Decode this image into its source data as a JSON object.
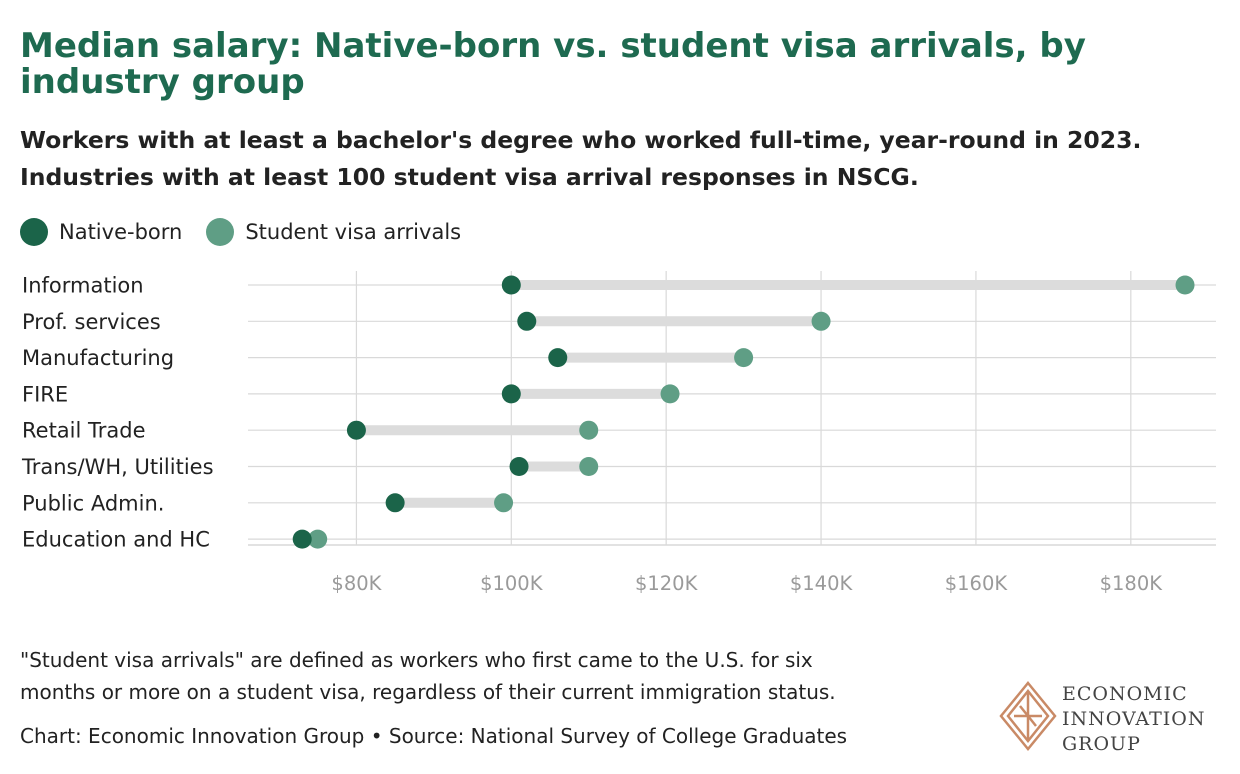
{
  "title": "Median salary: Native-born vs. student visa arrivals, by industry group",
  "subtitle_line1": "Workers with at least a bachelor's degree who worked full-time, year-round in 2023.",
  "subtitle_line2": "Industries with at least 100 student visa arrival responses in NSCG.",
  "colors": {
    "native_born": "#1b6449",
    "student_visa": "#5f9e85",
    "connector": "#dcdcdc",
    "grid": "#d9d9d9",
    "tick_label": "#9a9a9a",
    "title": "#1e6a50",
    "logo": "#c98a66"
  },
  "chart_data": {
    "type": "dumbbell",
    "categories": [
      "Information",
      "Prof. services",
      "Manufacturing",
      "FIRE",
      "Retail Trade",
      "Trans/WH, Utilities",
      "Public Admin.",
      "Education and HC"
    ],
    "series": [
      {
        "name": "Native-born",
        "values": [
          100000,
          102000,
          106000,
          100000,
          80000,
          101000,
          85000,
          73000
        ]
      },
      {
        "name": "Student visa arrivals",
        "values": [
          187000,
          140000,
          130000,
          120500,
          110000,
          110000,
          99000,
          75000
        ]
      }
    ],
    "xticks": [
      80000,
      100000,
      120000,
      140000,
      160000,
      180000
    ],
    "xtick_labels": [
      "$80K",
      "$100K",
      "$120K",
      "$140K",
      "$160K",
      "$180K"
    ],
    "xlim": [
      66000,
      191000
    ],
    "grid": true,
    "legend": "top-left"
  },
  "note_line1": "\"Student visa arrivals\" are defined as workers who first came to the U.S. for six",
  "note_line2": "months or more on a student visa, regardless of their current immigration status.",
  "credit": "Chart: Economic Innovation Group • Source: National Survey of College Graduates",
  "logo": {
    "line1": "ECONOMIC",
    "line2": "INNOVATION",
    "line3": "GROUP"
  }
}
